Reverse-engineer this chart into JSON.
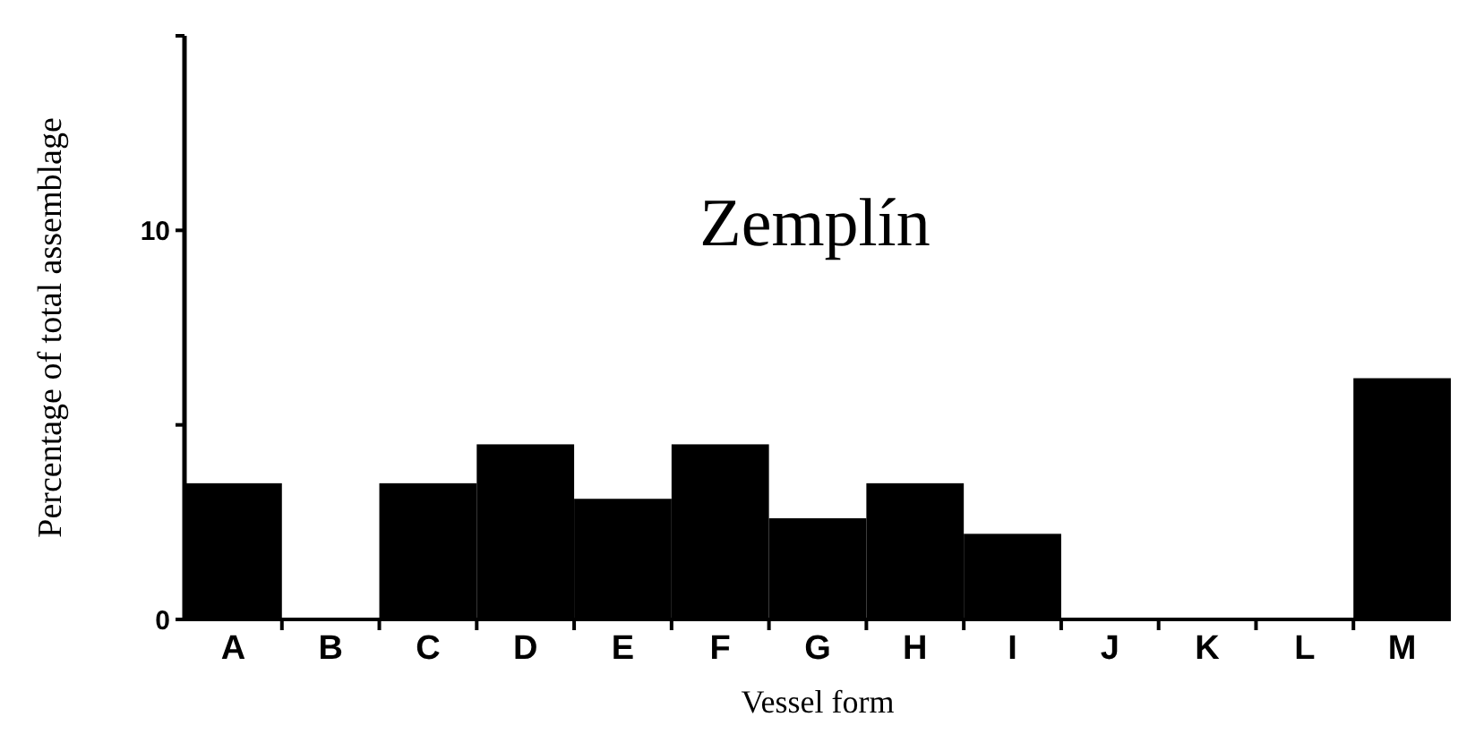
{
  "chart_data": {
    "type": "bar",
    "title": "Zemplín",
    "xlabel": "Vessel form",
    "ylabel": "Percentage of total assemblage",
    "categories": [
      "A",
      "B",
      "C",
      "D",
      "E",
      "F",
      "G",
      "H",
      "I",
      "J",
      "K",
      "L",
      "M"
    ],
    "values": [
      3.5,
      0,
      3.5,
      4.5,
      3.1,
      4.5,
      2.6,
      3.5,
      2.2,
      0,
      0,
      0,
      6.2
    ],
    "color": "#000000",
    "ylim": [
      0,
      15
    ],
    "yticks": [
      0,
      {
        "value": 5,
        "label": null
      },
      10,
      {
        "value": 15,
        "label": null
      }
    ],
    "grid": false
  }
}
